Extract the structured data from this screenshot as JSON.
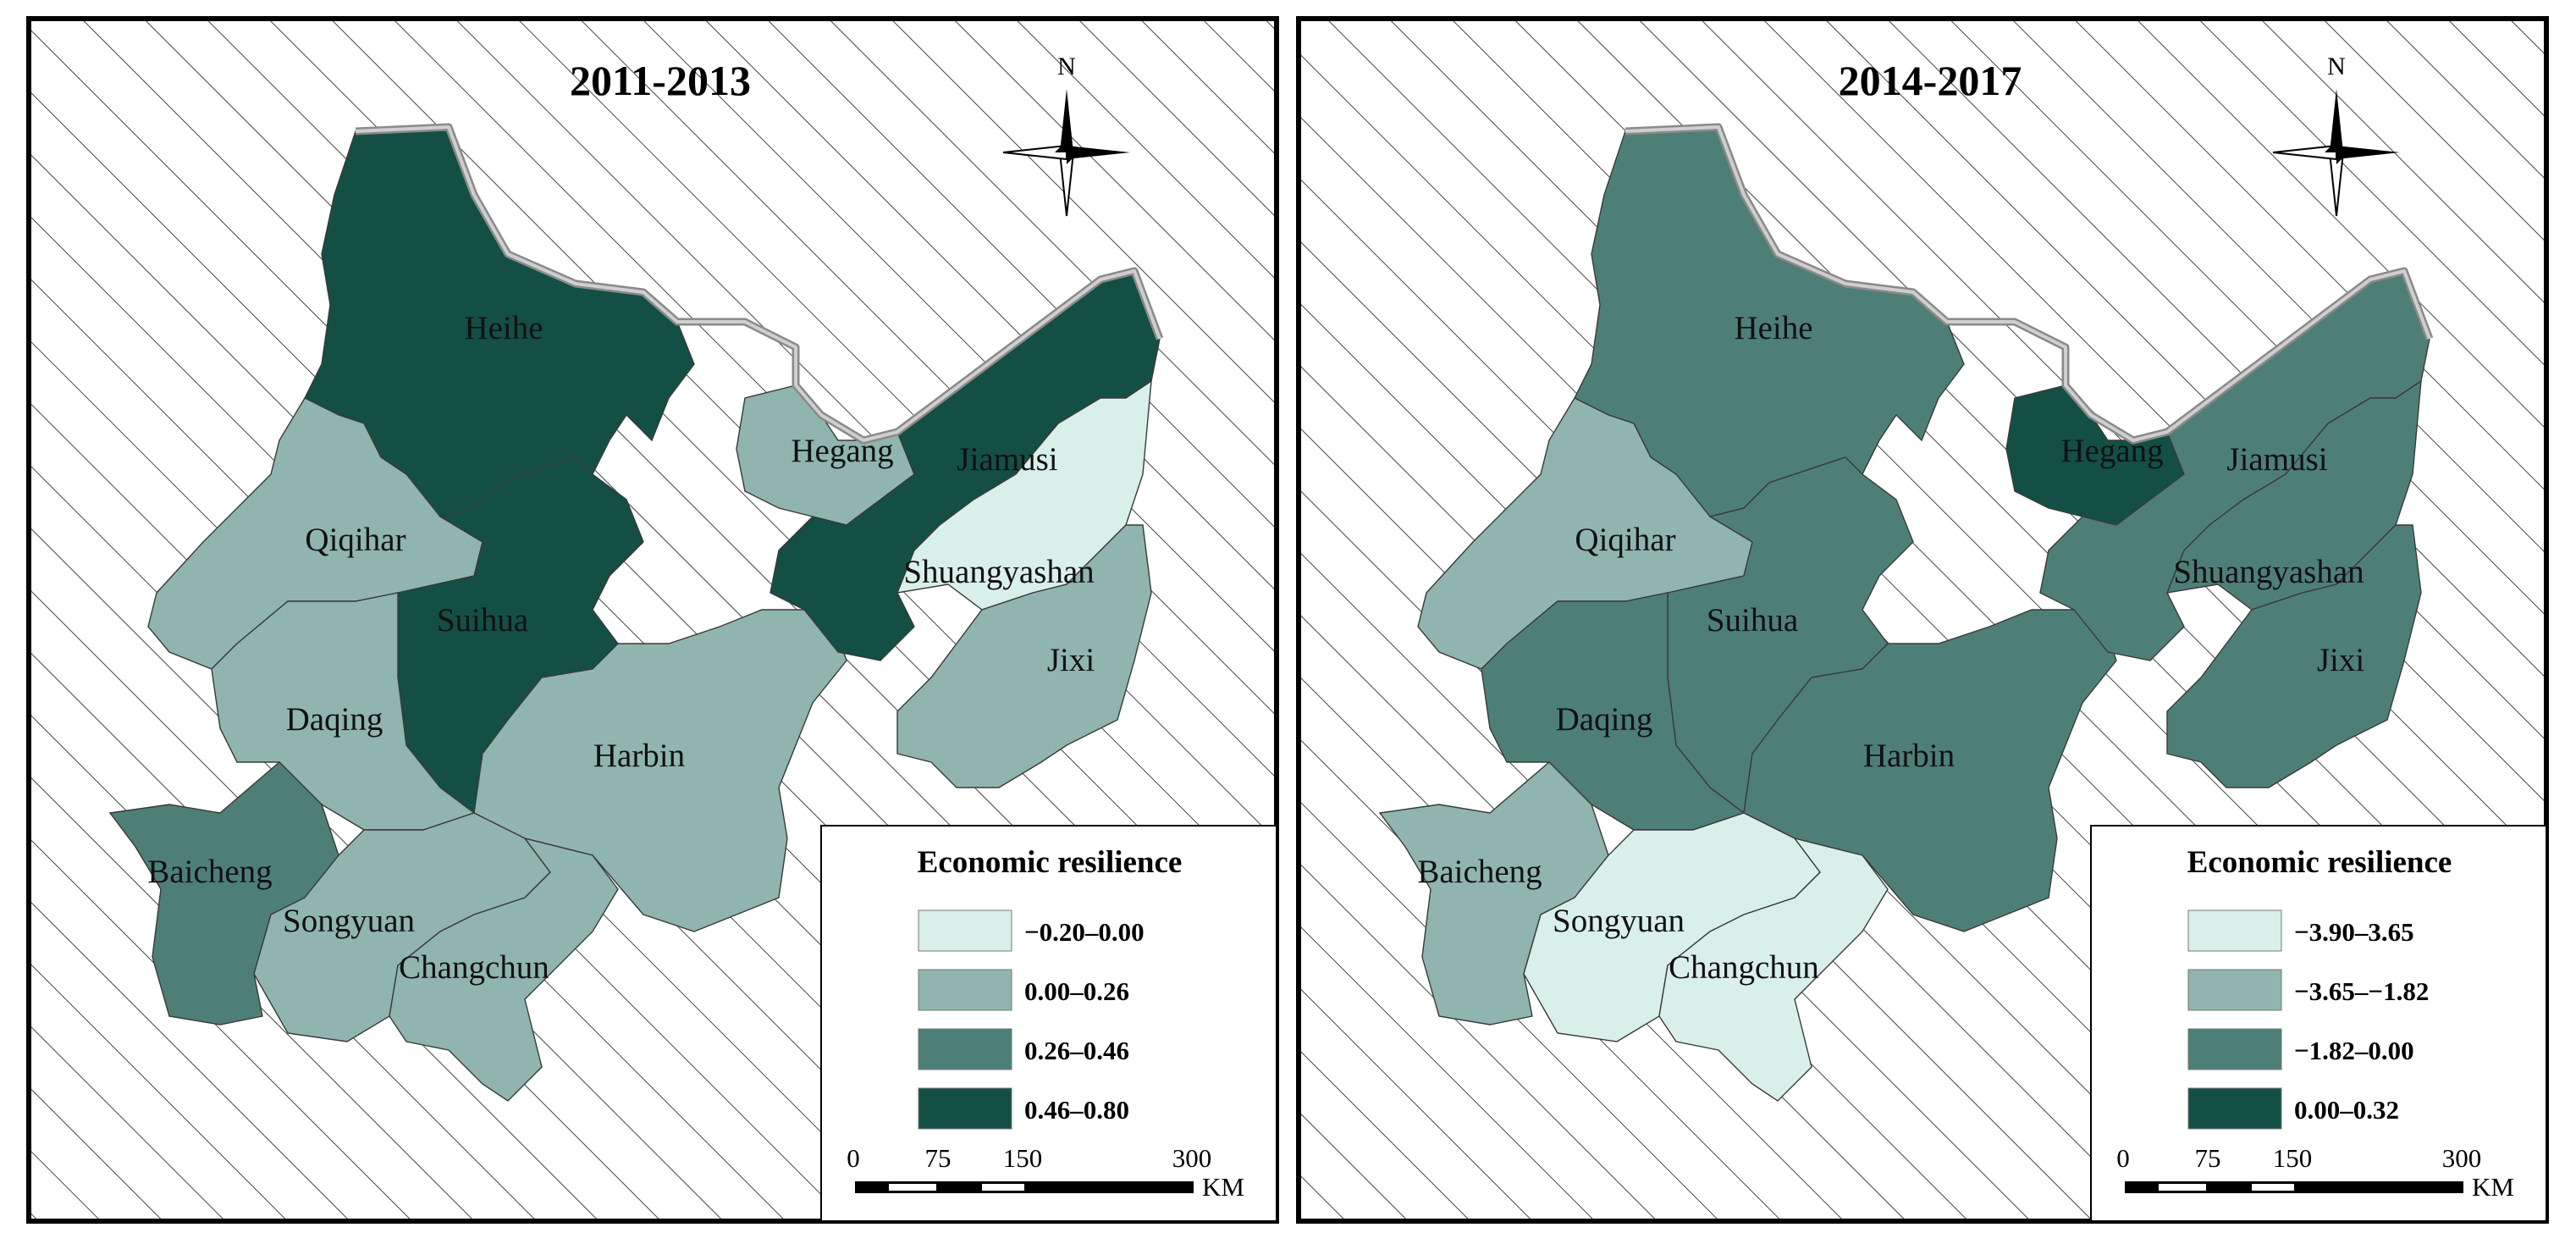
{
  "panels": [
    {
      "title": "2011-2013",
      "legend_title": "Economic resilience",
      "legend": [
        {
          "label": "−0.20–0.00",
          "color": "#d9efea"
        },
        {
          "label": "0.00–0.26",
          "color": "#8fb5ae"
        },
        {
          "label": "0.26–0.46",
          "color": "#4e7f76"
        },
        {
          "label": "0.46–0.80",
          "color": "#134f45"
        }
      ],
      "regions": {
        "Heihe": 3,
        "Qiqihar": 1,
        "Suihua": 3,
        "Daqing": 1,
        "Harbin": 1,
        "Hegang": 1,
        "Jiamusi": 3,
        "Shuangyashan": 0,
        "Jixi": 1,
        "Baicheng": 2,
        "Songyuan": 1,
        "Changchun": 1
      }
    },
    {
      "title": "2014-2017",
      "legend_title": "Economic resilience",
      "legend": [
        {
          "label": "−3.90–3.65",
          "color": "#d9efea"
        },
        {
          "label": "−3.65–−1.82",
          "color": "#8fb5ae"
        },
        {
          "label": "−1.82–0.00",
          "color": "#4e7f76"
        },
        {
          "label": "0.00–0.32",
          "color": "#134f45"
        }
      ],
      "regions": {
        "Heihe": 2,
        "Qiqihar": 1,
        "Suihua": 2,
        "Daqing": 2,
        "Harbin": 2,
        "Hegang": 3,
        "Jiamusi": 2,
        "Shuangyashan": 2,
        "Jixi": 2,
        "Baicheng": 1,
        "Songyuan": 0,
        "Changchun": 0
      }
    }
  ],
  "north_label": "N",
  "scale_labels": [
    "0",
    "75",
    "150",
    "300"
  ],
  "scale_unit": "KM",
  "city_labels": {
    "Heihe": "Heihe",
    "Qiqihar": "Qiqihar",
    "Suihua": "Suihua",
    "Daqing": "Daqing",
    "Harbin": "Harbin",
    "Hegang": "Hegang",
    "Jiamusi": "Jiamusi",
    "Shuangyashan": "Shuangyashan",
    "Jixi": "Jixi",
    "Baicheng": "Baicheng",
    "Songyuan": "Songyuan",
    "Changchun": "Changchun"
  }
}
